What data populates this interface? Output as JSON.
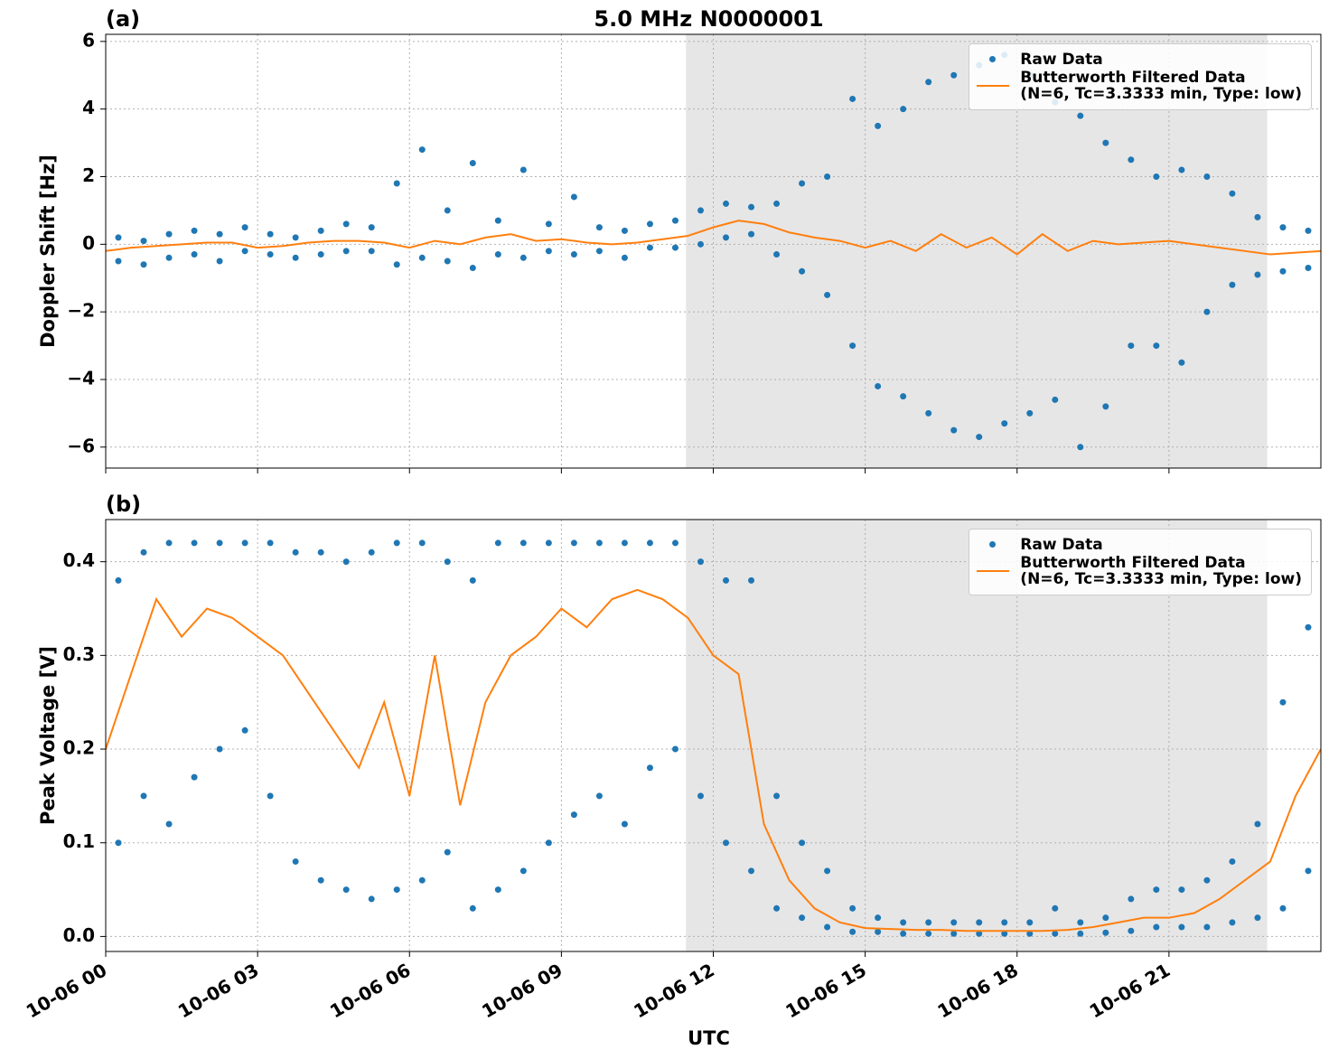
{
  "chart_data": [
    {
      "type": "scatter",
      "title": "5.0 MHz N0000001",
      "panel_label": "(a)",
      "ylabel": "Doppler Shift [Hz]",
      "xlim": [
        0,
        24
      ],
      "xticks": [
        0,
        3,
        6,
        9,
        12,
        15,
        18,
        21
      ],
      "ylim": [
        -6.62,
        6.21
      ],
      "yticks": [
        {
          "value": -6,
          "label": "−6"
        },
        {
          "value": -4,
          "label": "−4"
        },
        {
          "value": -2,
          "label": "−2"
        },
        0,
        2,
        4,
        6
      ],
      "grid": true,
      "legend": "upper right",
      "shaded_span": [
        11.46,
        22.94
      ],
      "series": [
        {
          "name": "Raw Data",
          "type": "scatter",
          "color": "#1f77b4",
          "x": [
            0.25,
            0.25,
            0.75,
            0.75,
            1.25,
            1.25,
            1.75,
            1.75,
            2.25,
            2.25,
            2.75,
            2.75,
            3.25,
            3.25,
            3.75,
            3.75,
            4.25,
            4.25,
            4.75,
            4.75,
            5.25,
            5.25,
            5.75,
            5.75,
            6.25,
            6.25,
            6.75,
            6.75,
            7.25,
            7.25,
            7.75,
            7.75,
            8.25,
            8.25,
            8.75,
            8.75,
            9.25,
            9.25,
            9.75,
            9.75,
            10.25,
            10.25,
            10.75,
            10.75,
            11.25,
            11.25,
            11.75,
            11.75,
            12.25,
            12.25,
            12.75,
            12.75,
            13.25,
            13.25,
            13.75,
            13.75,
            14.25,
            14.25,
            14.75,
            14.75,
            15.25,
            15.25,
            15.75,
            15.75,
            16.25,
            16.25,
            16.75,
            16.75,
            17.25,
            17.25,
            17.75,
            17.75,
            18.25,
            18.25,
            18.75,
            18.75,
            19.25,
            19.25,
            19.75,
            19.75,
            20.25,
            20.25,
            20.75,
            20.75,
            21.25,
            21.25,
            21.75,
            21.75,
            22.25,
            22.25,
            22.75,
            22.75,
            23.25,
            23.25,
            23.75,
            23.75
          ],
          "values": [
            -0.5,
            0.2,
            -0.6,
            0.1,
            -0.4,
            0.3,
            -0.3,
            0.4,
            -0.5,
            0.3,
            -0.2,
            0.5,
            -0.3,
            0.3,
            -0.4,
            0.2,
            -0.3,
            0.4,
            -0.2,
            0.6,
            -0.2,
            0.5,
            -0.6,
            1.8,
            -0.4,
            2.8,
            -0.5,
            1.0,
            -0.7,
            2.4,
            -0.3,
            0.7,
            -0.4,
            2.2,
            -0.2,
            0.6,
            -0.3,
            1.4,
            -0.2,
            0.5,
            -0.4,
            0.4,
            -0.1,
            0.6,
            -0.1,
            0.7,
            0.0,
            1.0,
            0.2,
            1.2,
            0.3,
            1.1,
            -0.3,
            1.2,
            -0.8,
            1.8,
            -1.5,
            2.0,
            -3.0,
            4.3,
            -4.2,
            3.5,
            -4.5,
            4.0,
            -5.0,
            4.8,
            -5.5,
            5.0,
            -5.7,
            5.3,
            -5.3,
            5.6,
            -5.0,
            5.0,
            -4.6,
            4.2,
            -6.0,
            3.8,
            -4.8,
            3.0,
            -3.0,
            2.5,
            -3.0,
            2.0,
            -3.5,
            2.2,
            -2.0,
            2.0,
            -1.2,
            1.5,
            -0.9,
            0.8,
            -0.8,
            0.5,
            -0.7,
            0.4
          ]
        },
        {
          "name": "Butterworth Filtered Data\n(N=6, Tc=3.3333 min, Type: low)",
          "type": "line",
          "color": "#ff7f0e",
          "x": [
            0,
            0.5,
            1,
            1.5,
            2,
            2.5,
            3,
            3.5,
            4,
            4.5,
            5,
            5.5,
            6,
            6.5,
            7,
            7.5,
            8,
            8.5,
            9,
            9.5,
            10,
            10.5,
            11,
            11.5,
            12,
            12.5,
            13,
            13.5,
            14,
            14.5,
            15,
            15.5,
            16,
            16.5,
            17,
            17.5,
            18,
            18.5,
            19,
            19.5,
            20,
            20.5,
            21,
            21.5,
            22,
            22.5,
            23,
            23.5,
            24
          ],
          "values": [
            -0.2,
            -0.1,
            -0.05,
            0,
            0.05,
            0.05,
            -0.1,
            -0.05,
            0.05,
            0.1,
            0.1,
            0.05,
            -0.1,
            0.1,
            0,
            0.2,
            0.3,
            0.1,
            0.15,
            0.05,
            0,
            0.05,
            0.15,
            0.25,
            0.5,
            0.7,
            0.6,
            0.35,
            0.2,
            0.1,
            -0.1,
            0.1,
            -0.2,
            0.3,
            -0.1,
            0.2,
            -0.3,
            0.3,
            -0.2,
            0.1,
            0.0,
            0.05,
            0.1,
            0,
            -0.1,
            -0.2,
            -0.3,
            -0.25,
            -0.2
          ]
        }
      ]
    },
    {
      "type": "scatter",
      "panel_label": "(b)",
      "ylabel": "Peak Voltage [V]",
      "xlabel": "UTC",
      "xlim": [
        0,
        24
      ],
      "xticks": [
        {
          "value": 0,
          "label": "10-06 00"
        },
        {
          "value": 3,
          "label": "10-06 03"
        },
        {
          "value": 6,
          "label": "10-06 06"
        },
        {
          "value": 9,
          "label": "10-06 09"
        },
        {
          "value": 12,
          "label": "10-06 12"
        },
        {
          "value": 15,
          "label": "10-06 15"
        },
        {
          "value": 18,
          "label": "10-06 18"
        },
        {
          "value": 21,
          "label": "10-06 21"
        }
      ],
      "ylim": [
        -0.016,
        0.445
      ],
      "yticks": [
        {
          "value": 0,
          "label": "0.0"
        },
        0.1,
        0.2,
        0.3,
        0.4
      ],
      "grid": true,
      "legend": "upper right",
      "shaded_span": [
        11.46,
        22.94
      ],
      "series": [
        {
          "name": "Raw Data",
          "type": "scatter",
          "color": "#1f77b4",
          "x": [
            0.25,
            0.25,
            0.75,
            0.75,
            1.25,
            1.25,
            1.75,
            1.75,
            2.25,
            2.25,
            2.75,
            2.75,
            3.25,
            3.25,
            3.75,
            3.75,
            4.25,
            4.25,
            4.75,
            4.75,
            5.25,
            5.25,
            5.75,
            5.75,
            6.25,
            6.25,
            6.75,
            6.75,
            7.25,
            7.25,
            7.75,
            7.75,
            8.25,
            8.25,
            8.75,
            8.75,
            9.25,
            9.25,
            9.75,
            9.75,
            10.25,
            10.25,
            10.75,
            10.75,
            11.25,
            11.25,
            11.75,
            11.75,
            12.25,
            12.25,
            12.75,
            12.75,
            13.25,
            13.25,
            13.75,
            13.75,
            14.25,
            14.25,
            14.75,
            14.75,
            15.25,
            15.25,
            15.75,
            15.75,
            16.25,
            16.25,
            16.75,
            16.75,
            17.25,
            17.25,
            17.75,
            17.75,
            18.25,
            18.25,
            18.75,
            18.75,
            19.25,
            19.25,
            19.75,
            19.75,
            20.25,
            20.25,
            20.75,
            20.75,
            21.25,
            21.25,
            21.75,
            21.75,
            22.25,
            22.25,
            22.75,
            22.75,
            23.25,
            23.25,
            23.75,
            23.75
          ],
          "values": [
            0.1,
            0.38,
            0.15,
            0.41,
            0.12,
            0.42,
            0.17,
            0.42,
            0.2,
            0.42,
            0.22,
            0.42,
            0.15,
            0.42,
            0.08,
            0.41,
            0.06,
            0.41,
            0.05,
            0.4,
            0.04,
            0.41,
            0.05,
            0.42,
            0.06,
            0.42,
            0.09,
            0.4,
            0.03,
            0.38,
            0.05,
            0.42,
            0.07,
            0.42,
            0.1,
            0.42,
            0.13,
            0.42,
            0.15,
            0.42,
            0.12,
            0.42,
            0.18,
            0.42,
            0.2,
            0.42,
            0.15,
            0.4,
            0.1,
            0.38,
            0.07,
            0.38,
            0.03,
            0.15,
            0.02,
            0.1,
            0.01,
            0.07,
            0.005,
            0.03,
            0.005,
            0.02,
            0.003,
            0.015,
            0.003,
            0.015,
            0.003,
            0.015,
            0.003,
            0.015,
            0.003,
            0.015,
            0.003,
            0.015,
            0.003,
            0.03,
            0.003,
            0.015,
            0.004,
            0.02,
            0.006,
            0.04,
            0.01,
            0.05,
            0.01,
            0.05,
            0.01,
            0.06,
            0.015,
            0.08,
            0.02,
            0.12,
            0.03,
            0.25,
            0.07,
            0.33
          ]
        },
        {
          "name": "Butterworth Filtered Data\n(N=6, Tc=3.3333 min, Type: low)",
          "type": "line",
          "color": "#ff7f0e",
          "x": [
            0,
            0.5,
            1,
            1.5,
            2,
            2.5,
            3,
            3.5,
            4,
            4.5,
            5,
            5.5,
            6,
            6.5,
            7,
            7.5,
            8,
            8.5,
            9,
            9.5,
            10,
            10.5,
            11,
            11.5,
            12,
            12.5,
            13,
            13.5,
            14,
            14.5,
            15,
            15.5,
            16,
            16.5,
            17,
            17.5,
            18,
            18.5,
            19,
            19.5,
            20,
            20.5,
            21,
            21.5,
            22,
            22.5,
            23,
            23.5,
            24
          ],
          "values": [
            0.2,
            0.28,
            0.36,
            0.32,
            0.35,
            0.34,
            0.32,
            0.3,
            0.26,
            0.22,
            0.18,
            0.25,
            0.15,
            0.3,
            0.14,
            0.25,
            0.3,
            0.32,
            0.35,
            0.33,
            0.36,
            0.37,
            0.36,
            0.34,
            0.3,
            0.28,
            0.12,
            0.06,
            0.03,
            0.015,
            0.009,
            0.008,
            0.007,
            0.007,
            0.006,
            0.006,
            0.006,
            0.006,
            0.007,
            0.01,
            0.015,
            0.02,
            0.02,
            0.025,
            0.04,
            0.06,
            0.08,
            0.15,
            0.2
          ]
        }
      ]
    }
  ]
}
